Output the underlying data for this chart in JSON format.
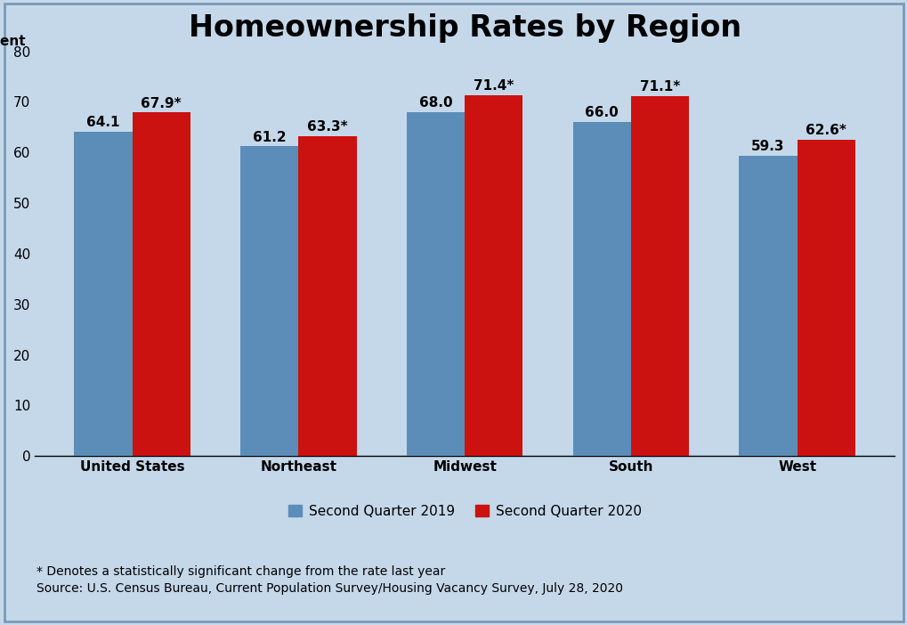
{
  "title": "Homeownership Rates by Region",
  "categories": [
    "United States",
    "Northeast",
    "Midwest",
    "South",
    "West"
  ],
  "series": [
    {
      "label": "Second Quarter 2019",
      "values": [
        64.1,
        61.2,
        68.0,
        66.0,
        59.3
      ],
      "labels": [
        "64.1",
        "61.2",
        "68.0",
        "66.0",
        "59.3"
      ],
      "color": "#5b8db8"
    },
    {
      "label": "Second Quarter 2020",
      "values": [
        67.9,
        63.3,
        71.4,
        71.1,
        62.6
      ],
      "labels": [
        "67.9*",
        "63.3*",
        "71.4*",
        "71.1*",
        "62.6*"
      ],
      "color": "#cc1111"
    }
  ],
  "ylim": [
    0,
    80
  ],
  "yticks": [
    0,
    10,
    20,
    30,
    40,
    50,
    60,
    70,
    80
  ],
  "background_color": "#c5d8ea",
  "border_color": "#7a9ab5",
  "footnote1": "* Denotes a statistically significant change from the rate last year",
  "footnote2": "Source: U.S. Census Bureau, Current Population Survey/Housing Vacancy Survey, July 28, 2020",
  "bar_width": 0.35,
  "title_fontsize": 24,
  "label_fontsize": 11,
  "tick_fontsize": 11,
  "legend_fontsize": 11,
  "footnote_fontsize": 10,
  "ylabel_fontsize": 11
}
